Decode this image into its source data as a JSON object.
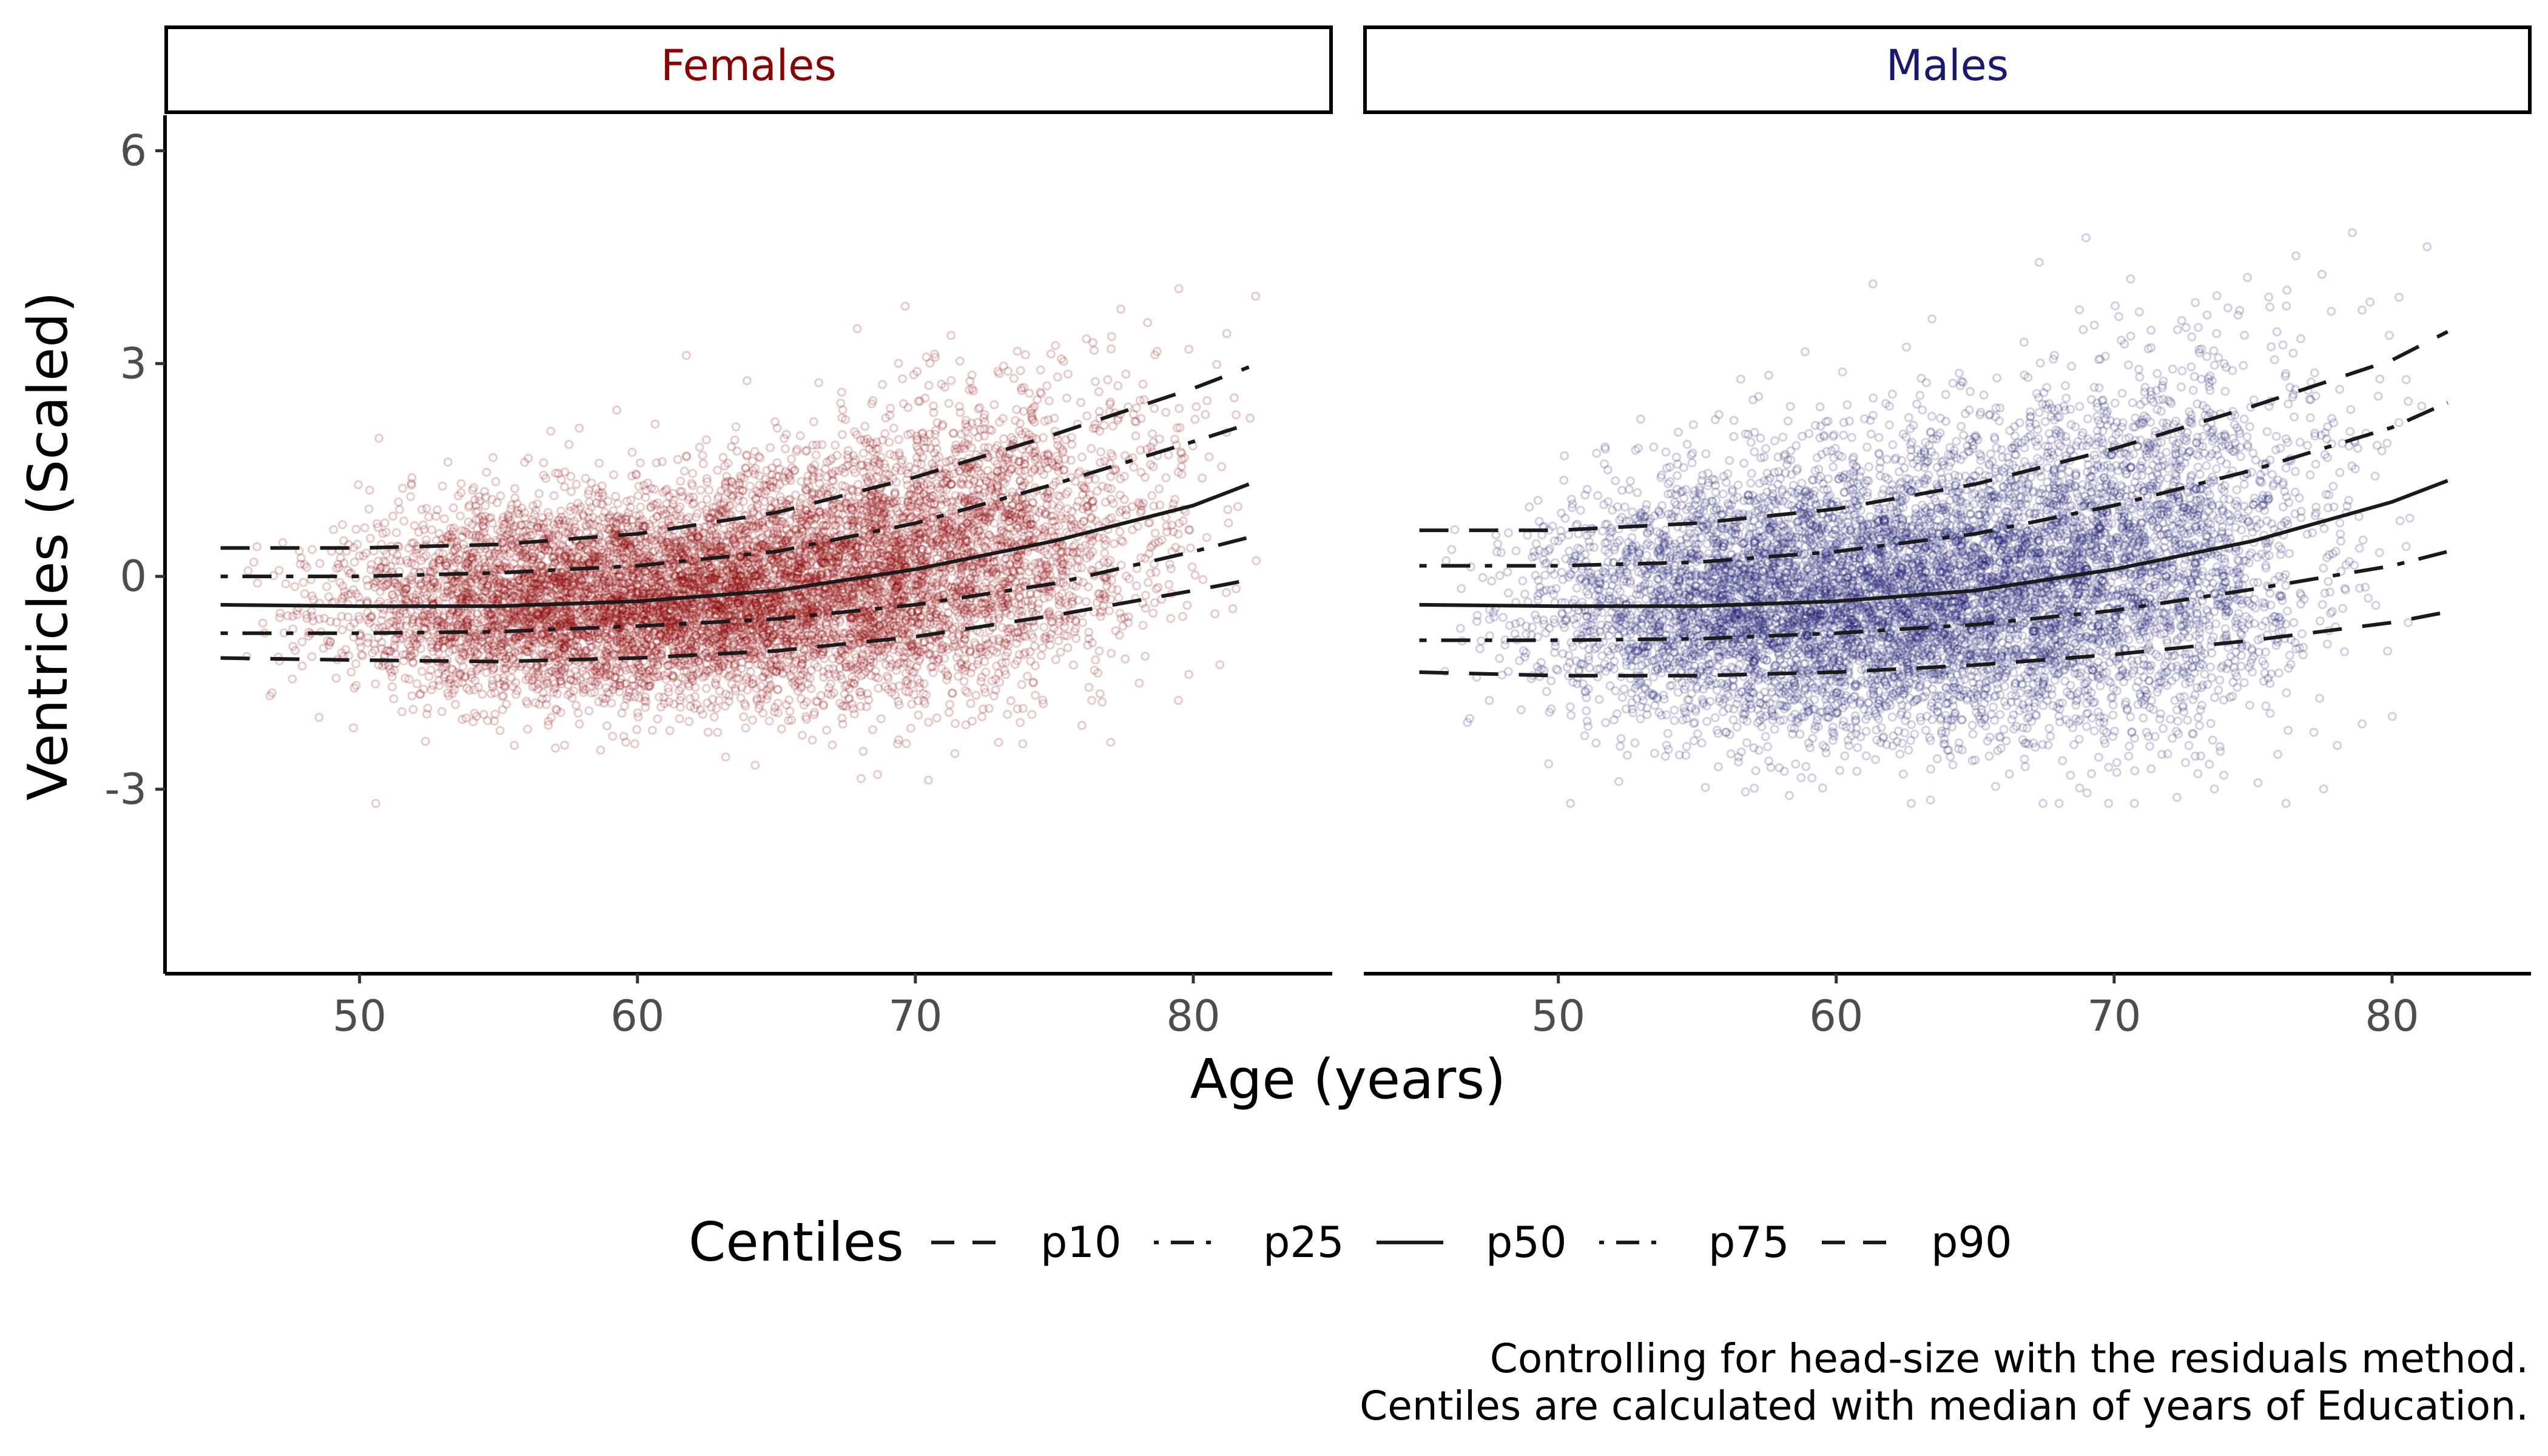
{
  "chart_data": {
    "type": "scatter",
    "xlabel": "Age (years)",
    "ylabel": "Ventricles (Scaled)",
    "xlim": [
      43,
      85
    ],
    "ylim": [
      -5.6,
      6.5
    ],
    "x_ticks": [
      50,
      60,
      70,
      80
    ],
    "y_ticks": [
      -3,
      0,
      3,
      6
    ],
    "grid": false,
    "legend": {
      "title": "Centiles",
      "position": "bottom",
      "entries": [
        {
          "label": "p10",
          "linetype": "dashed"
        },
        {
          "label": "p25",
          "linetype": "dotdash"
        },
        {
          "label": "p50",
          "linetype": "solid"
        },
        {
          "label": "p75",
          "linetype": "dotdash"
        },
        {
          "label": "p90",
          "linetype": "dashed"
        }
      ]
    },
    "caption": [
      "Controlling for head-size with the residuals method.",
      "Centiles are calculated with median of years of Education."
    ],
    "panels": [
      {
        "name": "Females",
        "color": "#8B0000",
        "scatter": {
          "x_range": [
            45,
            83
          ],
          "approx_points": 9000,
          "point_alpha": 0.2,
          "note_points": "dense cloud, centered near the p50 curve"
        },
        "centiles": {
          "x": [
            45,
            50,
            55,
            60,
            65,
            70,
            75,
            80,
            82
          ],
          "p10": [
            -1.15,
            -1.18,
            -1.2,
            -1.15,
            -1.05,
            -0.85,
            -0.55,
            -0.2,
            -0.05
          ],
          "p25": [
            -0.8,
            -0.8,
            -0.78,
            -0.7,
            -0.6,
            -0.4,
            -0.1,
            0.35,
            0.55
          ],
          "p50": [
            -0.4,
            -0.42,
            -0.42,
            -0.35,
            -0.2,
            0.1,
            0.5,
            1.0,
            1.3
          ],
          "p75": [
            0.0,
            0.0,
            0.05,
            0.15,
            0.35,
            0.75,
            1.3,
            1.9,
            2.15
          ],
          "p90": [
            0.4,
            0.4,
            0.45,
            0.6,
            0.9,
            1.4,
            2.0,
            2.65,
            2.95
          ]
        }
      },
      {
        "name": "Males",
        "color": "#191970",
        "scatter": {
          "x_range": [
            45,
            82
          ],
          "approx_points": 8500,
          "point_alpha": 0.2,
          "note_points": "dense cloud, centered near the p50 curve"
        },
        "centiles": {
          "x": [
            45,
            50,
            55,
            60,
            65,
            70,
            75,
            80,
            82
          ],
          "p10": [
            -1.35,
            -1.4,
            -1.4,
            -1.35,
            -1.25,
            -1.1,
            -0.9,
            -0.65,
            -0.5
          ],
          "p25": [
            -0.9,
            -0.9,
            -0.88,
            -0.8,
            -0.68,
            -0.48,
            -0.18,
            0.15,
            0.35
          ],
          "p50": [
            -0.4,
            -0.42,
            -0.42,
            -0.35,
            -0.2,
            0.1,
            0.5,
            1.05,
            1.35
          ],
          "p75": [
            0.15,
            0.15,
            0.2,
            0.35,
            0.6,
            1.0,
            1.5,
            2.1,
            2.45
          ],
          "p90": [
            0.65,
            0.65,
            0.75,
            0.95,
            1.3,
            1.8,
            2.4,
            3.05,
            3.45
          ]
        }
      }
    ]
  }
}
